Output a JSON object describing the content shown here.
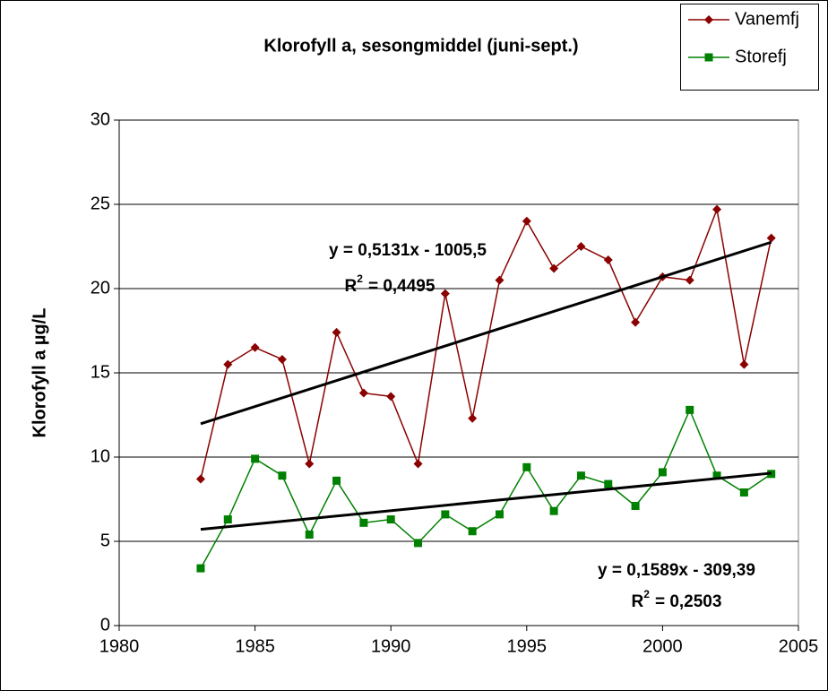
{
  "chart_data": {
    "type": "line",
    "title": "Klorofyll a, sesongmiddel (juni-sept.)",
    "y_label": "Klorofyll a µg/L",
    "x": [
      1983,
      1984,
      1985,
      1986,
      1987,
      1988,
      1989,
      1990,
      1991,
      1992,
      1993,
      1994,
      1995,
      1996,
      1997,
      1998,
      1999,
      2000,
      2001,
      2002,
      2003,
      2004
    ],
    "series": [
      {
        "name": "Vanemfj",
        "color": "#8b0000",
        "marker": "diamond",
        "values": [
          8.7,
          15.5,
          16.5,
          15.8,
          9.6,
          17.4,
          13.8,
          13.6,
          9.6,
          19.7,
          12.3,
          20.5,
          24.0,
          21.2,
          22.5,
          21.7,
          18.0,
          20.7,
          20.5,
          24.7,
          15.5,
          23.0
        ]
      },
      {
        "name": "Storefj",
        "color": "#008000",
        "marker": "square",
        "values": [
          3.4,
          6.3,
          9.9,
          8.9,
          5.4,
          8.6,
          6.1,
          6.3,
          4.9,
          6.6,
          5.6,
          6.6,
          9.4,
          6.8,
          8.9,
          8.4,
          7.1,
          9.1,
          12.8,
          8.9,
          7.9,
          9.0
        ]
      }
    ],
    "trendlines": [
      {
        "slope": 0.5131,
        "intercept": -1005.5,
        "equation": "y = 0,5131x - 1005,5",
        "r2_base": "R",
        "r2_sup": "2",
        "r2_value": "= 0,4495"
      },
      {
        "slope": 0.1589,
        "intercept": -309.39,
        "equation": "y = 0,1589x - 309,39",
        "r2_base": "R",
        "r2_sup": "2",
        "r2_value": "= 0,2503"
      }
    ],
    "xlim": [
      1980,
      2005
    ],
    "xticks": [
      1980,
      1985,
      1990,
      1995,
      2000,
      2005
    ],
    "ylim": [
      0,
      30
    ],
    "yticks": [
      0,
      5,
      10,
      15,
      20,
      25,
      30
    ],
    "grid": true,
    "legend": "top-right"
  }
}
